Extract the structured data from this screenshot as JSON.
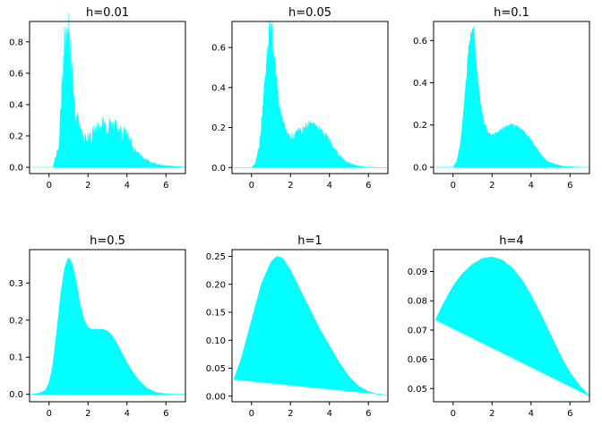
{
  "chart_data": [
    {
      "type": "area",
      "title": "h=0.01",
      "fill_color": "#00ffff",
      "xlim": [
        -1,
        7
      ],
      "ylim": [
        -0.04,
        0.93
      ],
      "xticks": [
        0,
        2,
        4,
        6
      ],
      "xtick_labels": [
        "0",
        "2",
        "4",
        "6"
      ],
      "yticks": [
        0,
        0.2,
        0.4,
        0.6,
        0.8
      ],
      "ytick_labels": [
        "0.0",
        "0.2",
        "0.4",
        "0.6",
        "0.8"
      ],
      "style": "noisy",
      "curve_x": [
        -0.9,
        0.2,
        0.3,
        0.5,
        0.6,
        0.7,
        0.8,
        0.9,
        1.0,
        1.1,
        1.2,
        1.3,
        1.4,
        1.5,
        1.6,
        1.8,
        2.0,
        2.2,
        2.5,
        2.8,
        3.0,
        3.3,
        3.6,
        3.9,
        4.2,
        4.5,
        4.8,
        5.2,
        5.6,
        6.0,
        6.5,
        7.0
      ],
      "curve_y": [
        0.0,
        0.0,
        0.05,
        0.12,
        0.35,
        0.55,
        0.75,
        0.85,
        0.8,
        0.7,
        0.55,
        0.42,
        0.33,
        0.27,
        0.22,
        0.17,
        0.18,
        0.2,
        0.24,
        0.26,
        0.27,
        0.25,
        0.23,
        0.2,
        0.15,
        0.09,
        0.06,
        0.03,
        0.015,
        0.01,
        0.005,
        0.0
      ]
    },
    {
      "type": "area",
      "title": "h=0.05",
      "fill_color": "#00ffff",
      "xlim": [
        -1,
        7
      ],
      "ylim": [
        -0.03,
        0.73
      ],
      "xticks": [
        0,
        2,
        4,
        6
      ],
      "xtick_labels": [
        "0",
        "2",
        "4",
        "6"
      ],
      "yticks": [
        0,
        0.2,
        0.4,
        0.6
      ],
      "ytick_labels": [
        "0.0",
        "0.2",
        "0.4",
        "0.6"
      ],
      "style": "jagged",
      "curve_x": [
        -0.9,
        0.0,
        0.2,
        0.4,
        0.6,
        0.8,
        0.9,
        1.0,
        1.1,
        1.2,
        1.4,
        1.6,
        1.8,
        2.0,
        2.2,
        2.5,
        2.8,
        3.0,
        3.3,
        3.6,
        3.9,
        4.2,
        4.5,
        4.8,
        5.2,
        5.6,
        6.0,
        6.5,
        7.0
      ],
      "curve_y": [
        0.0,
        0.0,
        0.02,
        0.1,
        0.3,
        0.55,
        0.65,
        0.7,
        0.62,
        0.48,
        0.3,
        0.22,
        0.17,
        0.15,
        0.16,
        0.18,
        0.2,
        0.21,
        0.2,
        0.17,
        0.15,
        0.1,
        0.06,
        0.03,
        0.015,
        0.005,
        0.002,
        0.0,
        0.0
      ]
    },
    {
      "type": "area",
      "title": "h=0.1",
      "fill_color": "#00ffff",
      "xlim": [
        -1,
        7
      ],
      "ylim": [
        -0.03,
        0.69
      ],
      "xticks": [
        0,
        2,
        4,
        6
      ],
      "xtick_labels": [
        "0",
        "2",
        "4",
        "6"
      ],
      "yticks": [
        0,
        0.2,
        0.4,
        0.6
      ],
      "ytick_labels": [
        "0.0",
        "0.2",
        "0.4",
        "0.6"
      ],
      "style": "slight",
      "curve_x": [
        -0.9,
        0.0,
        0.2,
        0.4,
        0.6,
        0.8,
        0.9,
        1.0,
        1.1,
        1.2,
        1.4,
        1.6,
        1.8,
        2.0,
        2.2,
        2.5,
        2.8,
        3.0,
        3.3,
        3.6,
        3.9,
        4.2,
        4.5,
        4.8,
        5.2,
        5.6,
        6.0,
        6.5,
        7.0
      ],
      "curve_y": [
        0.0,
        0.0,
        0.03,
        0.12,
        0.33,
        0.55,
        0.63,
        0.66,
        0.6,
        0.48,
        0.3,
        0.21,
        0.16,
        0.15,
        0.16,
        0.18,
        0.19,
        0.2,
        0.19,
        0.17,
        0.14,
        0.1,
        0.06,
        0.03,
        0.015,
        0.005,
        0.002,
        0.0,
        0.0
      ]
    },
    {
      "type": "area",
      "title": "h=0.5",
      "fill_color": "#00ffff",
      "xlim": [
        -1,
        7
      ],
      "ylim": [
        -0.02,
        0.39
      ],
      "xticks": [
        0,
        2,
        4,
        6
      ],
      "xtick_labels": [
        "0",
        "2",
        "4",
        "6"
      ],
      "yticks": [
        0,
        0.1,
        0.2,
        0.3
      ],
      "ytick_labels": [
        "0.0",
        "0.1",
        "0.2",
        "0.3"
      ],
      "style": "smooth",
      "curve_x": [
        -0.9,
        -0.5,
        -0.2,
        0.0,
        0.2,
        0.4,
        0.6,
        0.8,
        1.0,
        1.2,
        1.4,
        1.6,
        1.8,
        2.0,
        2.2,
        2.4,
        2.6,
        2.8,
        3.0,
        3.2,
        3.4,
        3.6,
        3.8,
        4.0,
        4.3,
        4.6,
        5.0,
        5.5,
        6.0,
        6.5,
        7.0
      ],
      "curve_y": [
        0.0,
        0.003,
        0.01,
        0.03,
        0.08,
        0.17,
        0.27,
        0.34,
        0.37,
        0.35,
        0.3,
        0.24,
        0.2,
        0.18,
        0.175,
        0.175,
        0.175,
        0.175,
        0.17,
        0.16,
        0.145,
        0.125,
        0.105,
        0.085,
        0.06,
        0.038,
        0.017,
        0.005,
        0.001,
        0.0,
        0.0
      ]
    },
    {
      "type": "area",
      "title": "h=1",
      "fill_color": "#00ffff",
      "xlim": [
        -1,
        7
      ],
      "ylim": [
        -0.01,
        0.262
      ],
      "xticks": [
        0,
        2,
        4,
        6
      ],
      "xtick_labels": [
        "0",
        "2",
        "4",
        "6"
      ],
      "yticks": [
        0,
        0.05,
        0.1,
        0.15,
        0.2,
        0.25
      ],
      "ytick_labels": [
        "0.00",
        "0.05",
        "0.10",
        "0.15",
        "0.20",
        "0.25"
      ],
      "style": "smooth",
      "lower_x": [
        -0.9,
        7.0
      ],
      "lower_y": [
        0.03,
        0.002
      ],
      "curve_x": [
        -0.9,
        -0.5,
        0.0,
        0.5,
        1.0,
        1.3,
        1.6,
        2.0,
        2.5,
        3.0,
        3.5,
        4.0,
        4.5,
        5.0,
        5.5,
        6.0,
        6.5,
        7.0
      ],
      "curve_y": [
        0.03,
        0.07,
        0.135,
        0.2,
        0.24,
        0.25,
        0.247,
        0.225,
        0.19,
        0.155,
        0.12,
        0.09,
        0.06,
        0.035,
        0.018,
        0.008,
        0.003,
        0.002
      ]
    },
    {
      "type": "area",
      "title": "h=4",
      "fill_color": "#00ffff",
      "xlim": [
        -1,
        7
      ],
      "ylim": [
        0.0455,
        0.0975
      ],
      "xticks": [
        0,
        2,
        4,
        6
      ],
      "xtick_labels": [
        "0",
        "2",
        "4",
        "6"
      ],
      "yticks": [
        0.05,
        0.06,
        0.07,
        0.08,
        0.09
      ],
      "ytick_labels": [
        "0.05",
        "0.06",
        "0.07",
        "0.08",
        "0.09"
      ],
      "style": "smooth",
      "lower_x": [
        -0.9,
        7.0
      ],
      "lower_y": [
        0.0735,
        0.0475
      ],
      "curve_x": [
        -0.9,
        -0.5,
        0.0,
        0.5,
        1.0,
        1.5,
        2.0,
        2.5,
        3.0,
        3.5,
        4.0,
        4.5,
        5.0,
        5.5,
        6.0,
        6.5,
        7.0
      ],
      "curve_y": [
        0.0735,
        0.079,
        0.085,
        0.0895,
        0.0925,
        0.0945,
        0.095,
        0.094,
        0.0915,
        0.0875,
        0.082,
        0.0755,
        0.0685,
        0.0615,
        0.0555,
        0.051,
        0.0475
      ]
    }
  ]
}
